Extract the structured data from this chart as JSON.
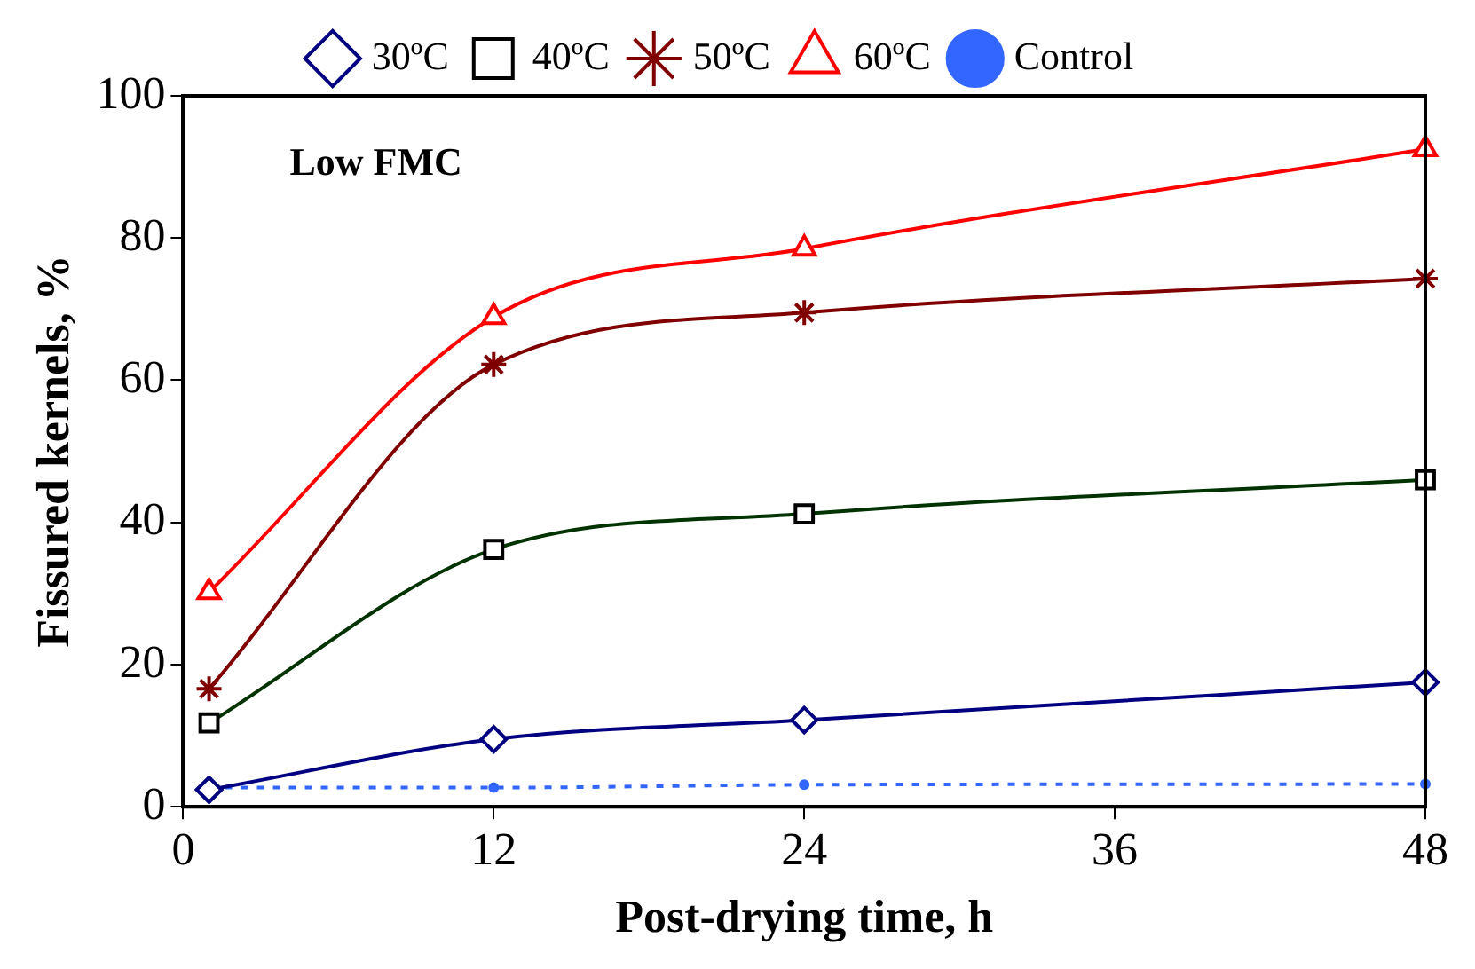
{
  "chart_data": {
    "type": "line",
    "xlabel": "Post-drying time, h",
    "ylabel": "Fissured kernels, %",
    "annotations": [
      "Low FMC"
    ],
    "xlim": [
      0,
      48
    ],
    "xticks": [
      0,
      12,
      24,
      36,
      48
    ],
    "ylim": [
      0,
      100
    ],
    "yticks": [
      0,
      20,
      40,
      60,
      80,
      100
    ],
    "grid": false,
    "legend": "top",
    "series": [
      {
        "name": "30ºC",
        "color": "#000080",
        "marker": "diamond",
        "line_style": "solid",
        "x": [
          1,
          12,
          24,
          48
        ],
        "values": [
          2.4,
          9.5,
          12.2,
          17.5
        ]
      },
      {
        "name": "40ºC",
        "color": "#003300",
        "marker": "square",
        "line_style": "solid",
        "x": [
          1,
          12,
          24,
          48
        ],
        "values": [
          11.8,
          36.2,
          41.2,
          46
        ]
      },
      {
        "name": "50ºC",
        "color": "#800000",
        "marker": "cross",
        "line_style": "solid",
        "x": [
          1,
          12,
          24,
          48
        ],
        "values": [
          16.6,
          62.2,
          69.5,
          74.3
        ]
      },
      {
        "name": "60ºC",
        "color": "#ff0000",
        "marker": "triangle",
        "line_style": "solid",
        "x": [
          1,
          12,
          24,
          48
        ],
        "values": [
          30.2,
          68.9,
          78.5,
          92.5
        ]
      },
      {
        "name": "Control",
        "color": "#3366ff",
        "marker": "circle",
        "line_style": "dotted",
        "x": [
          1,
          12,
          24,
          48
        ],
        "values": [
          2.7,
          2.7,
          3.1,
          3.2
        ]
      }
    ]
  }
}
